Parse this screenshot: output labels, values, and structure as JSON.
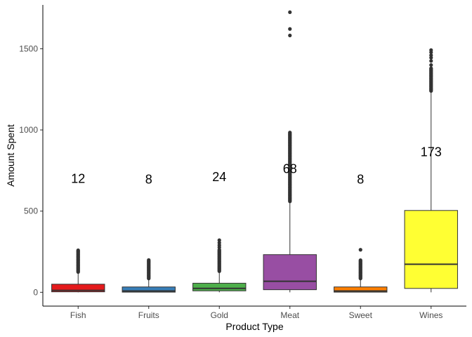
{
  "chart_data": {
    "type": "boxplot",
    "title": "",
    "xlabel": "Product Type",
    "ylabel": "Amount Spent",
    "ylim": [
      -85,
      1770
    ],
    "yticks": [
      0,
      500,
      1000,
      1500
    ],
    "grid": false,
    "legend": "none",
    "categories": [
      "Fish",
      "Fruits",
      "Gold",
      "Meat",
      "Sweet",
      "Wines"
    ],
    "boxes": [
      {
        "category": "Fish",
        "color": "#e41a1c",
        "q1": 3,
        "median": 12,
        "q3": 50,
        "whisker_low": 0,
        "whisker_high": 120,
        "outlier_range": [
          125,
          259
        ],
        "outliers": [],
        "label": "12",
        "label_y": 700
      },
      {
        "category": "Fruits",
        "color": "#377eb8",
        "q1": 1,
        "median": 8,
        "q3": 33,
        "whisker_low": 0,
        "whisker_high": 81,
        "outlier_range": [
          85,
          199
        ],
        "outliers": [],
        "label": "8",
        "label_y": 695
      },
      {
        "category": "Gold",
        "color": "#4daf4a",
        "q1": 9,
        "median": 24,
        "q3": 56,
        "whisker_low": 0,
        "whisker_high": 126,
        "outlier_range": [
          130,
          262
        ],
        "outliers": [
          277,
          290,
          305,
          321
        ],
        "label": "24",
        "label_y": 710
      },
      {
        "category": "Meat",
        "color": "#984ea3",
        "q1": 16,
        "median": 68,
        "q3": 232,
        "whisker_low": 0,
        "whisker_high": 556,
        "outlier_range": [
          560,
          984
        ],
        "outliers": [
          1582,
          1622,
          1725
        ],
        "label": "68",
        "label_y": 760
      },
      {
        "category": "Sweet",
        "color": "#ff7f00",
        "q1": 1,
        "median": 8,
        "q3": 33,
        "whisker_low": 0,
        "whisker_high": 81,
        "outlier_range": [
          85,
          198
        ],
        "outliers": [
          262
        ],
        "label": "8",
        "label_y": 695
      },
      {
        "category": "Wines",
        "color": "#ffff33",
        "q1": 24,
        "median": 173,
        "q3": 504,
        "whisker_low": 0,
        "whisker_high": 1230,
        "outlier_range": [
          1240,
          1380
        ],
        "outliers": [
          1400,
          1425,
          1445,
          1460,
          1478,
          1492
        ],
        "label": "173",
        "label_y": 865
      }
    ]
  }
}
